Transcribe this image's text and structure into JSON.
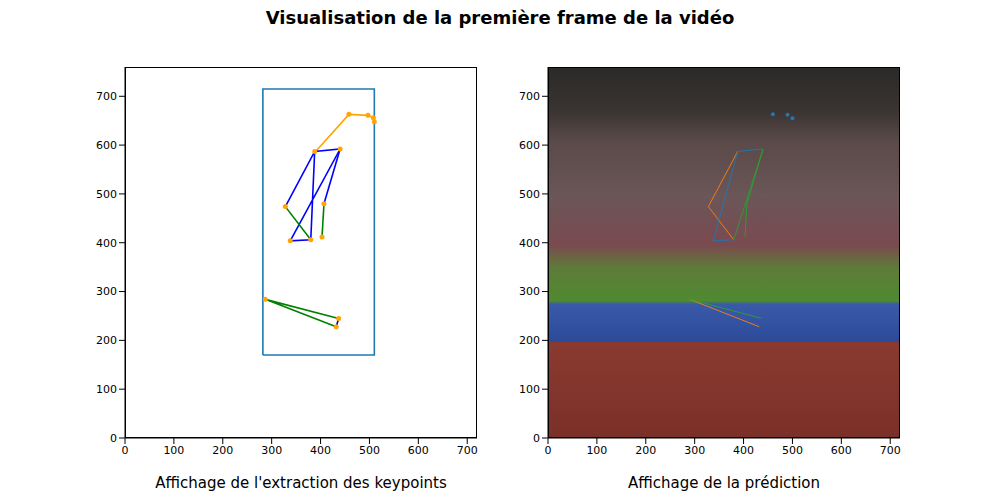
{
  "title": "Visualisation de la première frame de la vidéo",
  "chart_data": [
    {
      "type": "line",
      "xlabel": "Affichage de l'extraction des keypoints",
      "xlim": [
        0,
        720
      ],
      "ylim": [
        0,
        760
      ],
      "xticks": [
        0,
        100,
        200,
        300,
        400,
        500,
        600,
        700
      ],
      "yticks": [
        0,
        100,
        200,
        300,
        400,
        500,
        600,
        700
      ],
      "series": [
        {
          "color": "#1f77b4",
          "marker": "none",
          "x": [
            282,
            510,
            510,
            282,
            282
          ],
          "y": [
            170,
            170,
            715,
            715,
            170
          ]
        },
        {
          "color": "orange",
          "marker": "none",
          "x": [
            390,
            458,
            497,
            508,
            510
          ],
          "y": [
            587,
            663,
            661,
            656,
            648
          ]
        },
        {
          "color": "blue",
          "marker": "none",
          "x": [
            328,
            388,
            440,
            338,
            380,
            388
          ],
          "y": [
            474,
            587,
            592,
            404,
            406,
            587
          ]
        },
        {
          "color": "blue",
          "marker": "none",
          "x": [
            440,
            407
          ],
          "y": [
            592,
            480
          ]
        },
        {
          "color": "green",
          "marker": "none",
          "x": [
            328,
            380
          ],
          "y": [
            474,
            406
          ]
        },
        {
          "color": "green",
          "marker": "none",
          "x": [
            407,
            403
          ],
          "y": [
            480,
            412
          ]
        },
        {
          "color": "green",
          "marker": "none",
          "x": [
            437,
            287,
            432
          ],
          "y": [
            245,
            284,
            228
          ]
        },
        {
          "color": "blue",
          "marker": "none",
          "x": [
            432,
            437
          ],
          "y": [
            228,
            245
          ]
        },
        {
          "type": "scatter",
          "color": "orange",
          "marker": "circle",
          "x": [
            458,
            497,
            508,
            510,
            388,
            440,
            328,
            407,
            380,
            403,
            338,
            287,
            437,
            432
          ],
          "y": [
            663,
            661,
            656,
            648,
            587,
            592,
            474,
            480,
            406,
            412,
            404,
            284,
            245,
            228
          ]
        }
      ]
    },
    {
      "type": "line",
      "xlabel": "Affichage de la prédiction",
      "xlim": [
        0,
        720
      ],
      "ylim": [
        0,
        760
      ],
      "xticks": [
        0,
        100,
        200,
        300,
        400,
        500,
        600,
        700
      ],
      "yticks": [
        0,
        100,
        200,
        300,
        400,
        500,
        600,
        700
      ],
      "series": [
        {
          "color": "#ff7f0e",
          "marker": "none",
          "x": [
            388,
            328,
            380
          ],
          "y": [
            587,
            474,
            406
          ]
        },
        {
          "color": "#ff7f0e",
          "marker": "none",
          "x": [
            290,
            432
          ],
          "y": [
            284,
            228
          ]
        },
        {
          "color": "#2ca02c",
          "marker": "none",
          "x": [
            440,
            407,
            403
          ],
          "y": [
            592,
            480,
            412
          ]
        },
        {
          "color": "#2ca02c",
          "marker": "none",
          "x": [
            440,
            380
          ],
          "y": [
            592,
            406
          ]
        },
        {
          "color": "#2ca02c",
          "marker": "none",
          "x": [
            290,
            437
          ],
          "y": [
            284,
            245
          ]
        },
        {
          "color": "#1f77b4",
          "marker": "none",
          "x": [
            440,
            388,
            338,
            380
          ],
          "y": [
            592,
            587,
            404,
            406
          ]
        },
        {
          "type": "scatter",
          "color": "#1f77b4",
          "marker": "circle",
          "x": [
            460,
            490,
            500
          ],
          "y": [
            663,
            662,
            655
          ]
        }
      ]
    }
  ]
}
